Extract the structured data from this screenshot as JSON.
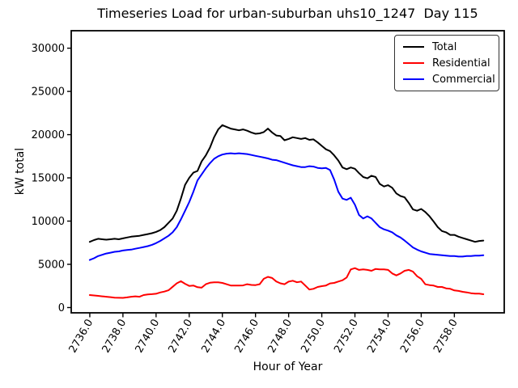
{
  "figure": {
    "title": "Timeseries Load for urban-suburban uhs10_1247  Day 115",
    "xlabel": "Hour of Year",
    "ylabel": "kW total"
  },
  "chart_data": {
    "type": "line",
    "title": "Timeseries Load for urban-suburban uhs10_1247  Day 115",
    "xlabel": "Hour of Year",
    "ylabel": "kW total",
    "grid": false,
    "legend_position": "upper right",
    "xlim": [
      2734.88,
      2761.01
    ],
    "ylim": [
      -610,
      32020
    ],
    "x_ticks": [
      2736,
      2738,
      2740,
      2742,
      2744,
      2746,
      2748,
      2750,
      2752,
      2754,
      2756,
      2758
    ],
    "x_tick_labels": [
      "2736.0",
      "2738.0",
      "2740.0",
      "2742.0",
      "2744.0",
      "2746.0",
      "2748.0",
      "2750.0",
      "2752.0",
      "2754.0",
      "2756.0",
      "2758.0"
    ],
    "x_tick_rotation": 60,
    "y_ticks": [
      0,
      5000,
      10000,
      15000,
      20000,
      25000,
      30000
    ],
    "y_tick_labels": [
      "0",
      "5000",
      "10000",
      "15000",
      "20000",
      "25000",
      "30000"
    ],
    "x_start": 2736.0,
    "x_step": 0.25,
    "x": [
      2736.0,
      2736.25,
      2736.5,
      2736.75,
      2737.0,
      2737.25,
      2737.5,
      2737.75,
      2738.0,
      2738.25,
      2738.5,
      2738.75,
      2739.0,
      2739.25,
      2739.5,
      2739.75,
      2740.0,
      2740.25,
      2740.5,
      2740.75,
      2741.0,
      2741.25,
      2741.5,
      2741.75,
      2742.0,
      2742.25,
      2742.5,
      2742.75,
      2743.0,
      2743.25,
      2743.5,
      2743.75,
      2744.0,
      2744.25,
      2744.5,
      2744.75,
      2745.0,
      2745.25,
      2745.5,
      2745.75,
      2746.0,
      2746.25,
      2746.5,
      2746.75,
      2747.0,
      2747.25,
      2747.5,
      2747.75,
      2748.0,
      2748.25,
      2748.5,
      2748.75,
      2749.0,
      2749.25,
      2749.5,
      2749.75,
      2750.0,
      2750.25,
      2750.5,
      2750.75,
      2751.0,
      2751.25,
      2751.5,
      2751.75,
      2752.0,
      2752.25,
      2752.5,
      2752.75,
      2753.0,
      2753.25,
      2753.5,
      2753.75,
      2754.0,
      2754.25,
      2754.5,
      2754.75,
      2755.0,
      2755.25,
      2755.5,
      2755.75,
      2756.0,
      2756.25,
      2756.5,
      2756.75,
      2757.0,
      2757.25,
      2757.5,
      2757.75,
      2758.0,
      2758.25,
      2758.5,
      2758.75,
      2759.0,
      2759.25,
      2759.5,
      2759.75
    ],
    "series": [
      {
        "name": "Total",
        "color": "#000000",
        "values": [
          7600,
          7800,
          7950,
          7900,
          7850,
          7900,
          7950,
          7900,
          8000,
          8100,
          8200,
          8250,
          8300,
          8400,
          8500,
          8600,
          8750,
          8950,
          9300,
          9800,
          10300,
          11200,
          12600,
          14200,
          15000,
          15600,
          15800,
          16900,
          17600,
          18500,
          19700,
          20600,
          21100,
          20900,
          20700,
          20600,
          20500,
          20600,
          20450,
          20250,
          20100,
          20150,
          20300,
          20700,
          20250,
          19900,
          19850,
          19350,
          19500,
          19700,
          19600,
          19500,
          19600,
          19400,
          19450,
          19100,
          18700,
          18300,
          18100,
          17600,
          17000,
          16200,
          16000,
          16200,
          16050,
          15550,
          15100,
          14950,
          15250,
          15100,
          14300,
          14000,
          14150,
          13850,
          13200,
          12900,
          12750,
          12100,
          11350,
          11200,
          11400,
          11050,
          10550,
          9950,
          9300,
          8850,
          8700,
          8400,
          8400,
          8200,
          8050,
          7900,
          7750,
          7600,
          7700,
          7750
        ]
      },
      {
        "name": "Residential",
        "color": "#ff0000",
        "values": [
          1450,
          1400,
          1350,
          1300,
          1250,
          1200,
          1150,
          1130,
          1120,
          1180,
          1250,
          1300,
          1250,
          1450,
          1520,
          1550,
          1600,
          1750,
          1850,
          2000,
          2400,
          2800,
          3050,
          2750,
          2500,
          2550,
          2350,
          2300,
          2700,
          2870,
          2920,
          2920,
          2850,
          2700,
          2550,
          2540,
          2540,
          2560,
          2700,
          2620,
          2600,
          2700,
          3330,
          3550,
          3420,
          3020,
          2800,
          2700,
          3000,
          3100,
          2920,
          3010,
          2550,
          2080,
          2170,
          2380,
          2480,
          2550,
          2790,
          2850,
          3010,
          3160,
          3480,
          4410,
          4560,
          4350,
          4410,
          4350,
          4250,
          4470,
          4410,
          4410,
          4350,
          3940,
          3720,
          3940,
          4250,
          4350,
          4160,
          3630,
          3320,
          2690,
          2600,
          2540,
          2380,
          2380,
          2220,
          2170,
          1980,
          1920,
          1820,
          1760,
          1660,
          1610,
          1610,
          1540
        ]
      },
      {
        "name": "Commercial",
        "color": "#0000ff",
        "values": [
          5500,
          5700,
          5950,
          6100,
          6250,
          6350,
          6450,
          6500,
          6600,
          6650,
          6700,
          6800,
          6900,
          7000,
          7100,
          7250,
          7450,
          7700,
          8000,
          8300,
          8700,
          9300,
          10200,
          11200,
          12200,
          13400,
          14700,
          15400,
          16100,
          16700,
          17200,
          17500,
          17700,
          17800,
          17850,
          17800,
          17850,
          17800,
          17750,
          17650,
          17550,
          17450,
          17350,
          17250,
          17100,
          17050,
          16900,
          16750,
          16600,
          16450,
          16350,
          16250,
          16250,
          16350,
          16300,
          16150,
          16100,
          16150,
          15900,
          14800,
          13400,
          12600,
          12450,
          12700,
          11900,
          10700,
          10300,
          10550,
          10300,
          9800,
          9300,
          9050,
          8900,
          8700,
          8350,
          8100,
          7750,
          7350,
          6950,
          6700,
          6500,
          6350,
          6200,
          6150,
          6100,
          6050,
          6000,
          5950,
          5950,
          5900,
          5900,
          5950,
          5950,
          6000,
          6000,
          6050
        ]
      }
    ]
  }
}
